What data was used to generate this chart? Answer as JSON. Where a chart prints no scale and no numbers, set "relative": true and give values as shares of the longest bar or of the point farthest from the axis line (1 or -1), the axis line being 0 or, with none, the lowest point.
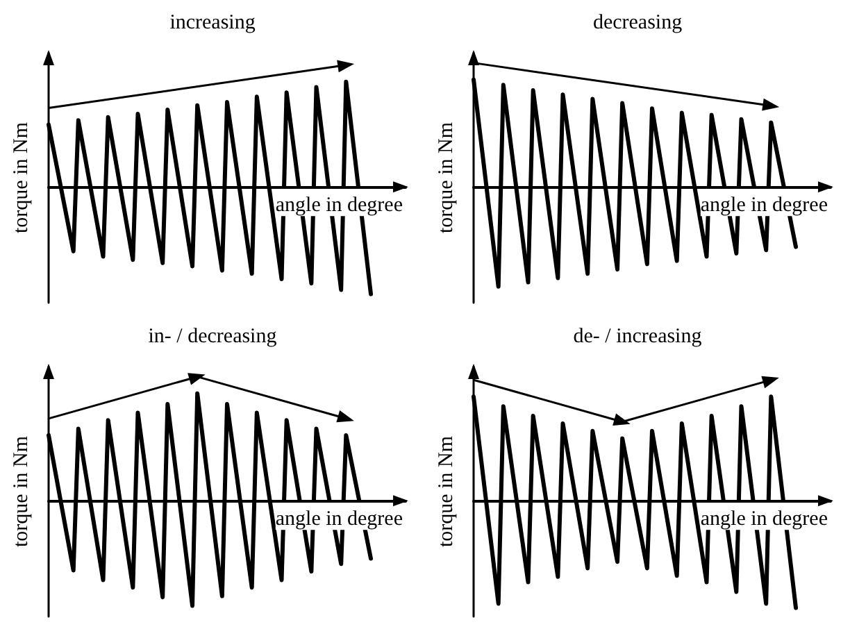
{
  "chart_data": [
    {
      "type": "line",
      "title": "increasing",
      "xlabel": "angle in degree",
      "ylabel": "torque in Nm",
      "relative": true,
      "line_style": "solid",
      "categories": [
        null,
        null,
        null,
        null,
        null,
        null,
        null,
        null,
        null,
        null,
        null,
        null,
        null,
        null,
        null,
        null,
        null,
        null,
        null,
        null,
        null,
        null,
        null,
        null,
        null,
        null,
        null,
        null,
        null,
        null,
        null,
        null,
        null,
        null,
        null,
        null,
        null,
        null,
        null,
        null,
        null,
        null,
        null,
        null,
        null,
        null,
        null,
        null,
        null,
        null,
        null,
        null,
        null,
        null,
        null,
        null,
        null,
        null,
        null,
        null,
        null,
        null,
        null,
        null,
        null,
        null,
        null,
        null,
        null,
        null,
        null,
        null,
        null
      ],
      "series": [
        {
          "color": "#000000",
          "values": [
            0.58,
            null,
            null,
            null,
            null,
            -0.6,
            0.62,
            null,
            null,
            null,
            null,
            -0.65,
            0.65,
            null,
            null,
            null,
            null,
            -0.68,
            0.68,
            null,
            null,
            null,
            null,
            -0.71,
            0.72,
            null,
            null,
            null,
            null,
            -0.74,
            0.76,
            null,
            null,
            null,
            null,
            -0.78,
            0.79,
            null,
            null,
            null,
            null,
            -0.81,
            0.84,
            null,
            null,
            null,
            null,
            -0.86,
            0.88,
            null,
            null,
            null,
            null,
            -0.9,
            0.93,
            null,
            null,
            null,
            null,
            -0.96,
            0.98,
            null,
            null,
            null,
            null,
            -1,
            null,
            null,
            null,
            null,
            null,
            null,
            null
          ]
        }
      ]
    },
    {
      "type": "line",
      "title": "decreasing",
      "xlabel": "angle in degree",
      "ylabel": "torque in Nm",
      "relative": true,
      "line_style": "solid",
      "categories": [
        null,
        null,
        null,
        null,
        null,
        null,
        null,
        null,
        null,
        null,
        null,
        null,
        null,
        null,
        null,
        null,
        null,
        null,
        null,
        null,
        null,
        null,
        null,
        null,
        null,
        null,
        null,
        null,
        null,
        null,
        null,
        null,
        null,
        null,
        null,
        null,
        null,
        null,
        null,
        null,
        null,
        null,
        null,
        null,
        null,
        null,
        null,
        null,
        null,
        null,
        null,
        null,
        null,
        null,
        null,
        null,
        null,
        null,
        null,
        null,
        null,
        null,
        null,
        null,
        null,
        null,
        null,
        null,
        null,
        null,
        null,
        null,
        null
      ],
      "series": [
        {
          "color": "#000000",
          "values": [
            1,
            null,
            null,
            null,
            null,
            -0.93,
            0.95,
            null,
            null,
            null,
            null,
            -0.89,
            0.9,
            null,
            null,
            null,
            null,
            -0.85,
            0.86,
            null,
            null,
            null,
            null,
            -0.81,
            0.82,
            null,
            null,
            null,
            null,
            -0.77,
            0.78,
            null,
            null,
            null,
            null,
            -0.72,
            0.73,
            null,
            null,
            null,
            null,
            -0.69,
            0.69,
            null,
            null,
            null,
            null,
            -0.65,
            0.67,
            null,
            null,
            null,
            null,
            -0.62,
            0.63,
            null,
            null,
            null,
            null,
            -0.59,
            0.6,
            null,
            null,
            null,
            null,
            -0.56,
            null,
            null,
            null,
            null,
            null,
            null,
            null
          ]
        }
      ]
    },
    {
      "type": "line",
      "title": "in- / decreasing",
      "xlabel": "angle in degree",
      "ylabel": "torque in Nm",
      "relative": true,
      "line_style": "solid",
      "categories": [
        null,
        null,
        null,
        null,
        null,
        null,
        null,
        null,
        null,
        null,
        null,
        null,
        null,
        null,
        null,
        null,
        null,
        null,
        null,
        null,
        null,
        null,
        null,
        null,
        null,
        null,
        null,
        null,
        null,
        null,
        null,
        null,
        null,
        null,
        null,
        null,
        null,
        null,
        null,
        null,
        null,
        null,
        null,
        null,
        null,
        null,
        null,
        null,
        null,
        null,
        null,
        null,
        null,
        null,
        null,
        null,
        null,
        null,
        null,
        null,
        null,
        null,
        null,
        null,
        null,
        null,
        null,
        null,
        null,
        null,
        null,
        null,
        null
      ],
      "series": [
        {
          "color": "#000000",
          "values": [
            0.61,
            null,
            null,
            null,
            null,
            -0.65,
            0.67,
            null,
            null,
            null,
            null,
            -0.74,
            0.75,
            null,
            null,
            null,
            null,
            -0.81,
            0.82,
            null,
            null,
            null,
            null,
            -0.9,
            0.9,
            null,
            null,
            null,
            null,
            -0.98,
            1,
            null,
            null,
            null,
            null,
            -0.89,
            0.9,
            null,
            null,
            null,
            null,
            -0.81,
            0.82,
            null,
            null,
            null,
            null,
            -0.74,
            0.75,
            null,
            null,
            null,
            null,
            -0.66,
            0.67,
            null,
            null,
            null,
            null,
            -0.59,
            0.61,
            null,
            null,
            null,
            null,
            -0.54,
            null,
            null,
            null,
            null,
            null,
            null,
            null
          ]
        }
      ]
    },
    {
      "type": "line",
      "title": "de- / increasing",
      "xlabel": "angle in degree",
      "ylabel": "torque in Nm",
      "relative": true,
      "line_style": "solid",
      "categories": [
        null,
        null,
        null,
        null,
        null,
        null,
        null,
        null,
        null,
        null,
        null,
        null,
        null,
        null,
        null,
        null,
        null,
        null,
        null,
        null,
        null,
        null,
        null,
        null,
        null,
        null,
        null,
        null,
        null,
        null,
        null,
        null,
        null,
        null,
        null,
        null,
        null,
        null,
        null,
        null,
        null,
        null,
        null,
        null,
        null,
        null,
        null,
        null,
        null,
        null,
        null,
        null,
        null,
        null,
        null,
        null,
        null,
        null,
        null,
        null,
        null,
        null,
        null,
        null,
        null,
        null,
        null,
        null,
        null,
        null,
        null,
        null,
        null
      ],
      "series": [
        {
          "color": "#000000",
          "values": [
            0.97,
            null,
            null,
            null,
            null,
            -0.96,
            0.88,
            null,
            null,
            null,
            null,
            -0.76,
            0.79,
            null,
            null,
            null,
            null,
            -0.71,
            0.72,
            null,
            null,
            null,
            null,
            -0.63,
            0.65,
            null,
            null,
            null,
            null,
            -0.57,
            0.58,
            null,
            null,
            null,
            null,
            -0.63,
            0.65,
            null,
            null,
            null,
            null,
            -0.7,
            0.72,
            null,
            null,
            null,
            null,
            -0.76,
            0.79,
            null,
            null,
            null,
            null,
            -0.85,
            0.88,
            null,
            null,
            null,
            null,
            -0.96,
            0.97,
            null,
            null,
            null,
            null,
            -1,
            null,
            null,
            null,
            null,
            null,
            null,
            null
          ]
        }
      ]
    }
  ]
}
